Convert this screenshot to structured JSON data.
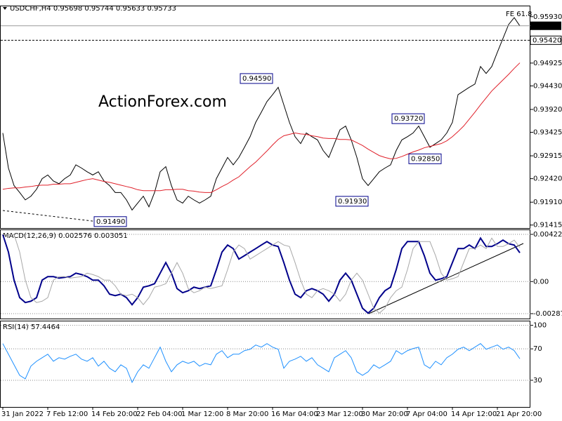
{
  "chart_data": [
    {
      "type": "line",
      "title": "USDCHF,H4 0.95698 0.95744 0.95633 0.95733",
      "watermark": "ActionForex.com",
      "fe_label": "FE 61.8",
      "ylim": [
        0.9135,
        0.9617
      ],
      "yticks": [
        {
          "value": 0.9593,
          "label": "0.95930"
        },
        {
          "value": 0.94925,
          "label": "0.94925"
        },
        {
          "value": 0.9443,
          "label": "0.94430"
        },
        {
          "value": 0.9392,
          "label": "0.93920"
        },
        {
          "value": 0.93425,
          "label": "0.93425"
        },
        {
          "value": 0.92915,
          "label": "0.92915"
        },
        {
          "value": 0.9242,
          "label": "0.92420"
        },
        {
          "value": 0.9191,
          "label": "0.91910"
        },
        {
          "value": 0.91415,
          "label": "0.91415"
        }
      ],
      "current_price": {
        "value": 0.95733,
        "label": "0.95733"
      },
      "level": {
        "value": 0.9542,
        "label": "0.95420"
      },
      "annotations": [
        {
          "value": 0.9459,
          "label": "0.94590",
          "index": 48
        },
        {
          "value": 0.9372,
          "label": "0.93720",
          "index": 75
        },
        {
          "value": 0.9285,
          "label": "0.92850",
          "index": 78
        },
        {
          "value": 0.9193,
          "label": "0.91930",
          "index": 65
        },
        {
          "value": 0.9149,
          "label": "0.91490",
          "index": 22
        }
      ],
      "series": [
        {
          "color": "#000000",
          "values": [
            0.9341,
            0.9265,
            0.9227,
            0.9212,
            0.9196,
            0.9204,
            0.9219,
            0.9242,
            0.925,
            0.9237,
            0.9231,
            0.9242,
            0.925,
            0.9272,
            0.9265,
            0.9257,
            0.925,
            0.9257,
            0.9237,
            0.9227,
            0.9212,
            0.9212,
            0.9196,
            0.9174,
            0.9189,
            0.9204,
            0.9181,
            0.9212,
            0.9257,
            0.9268,
            0.9227,
            0.9196,
            0.9189,
            0.9204,
            0.9196,
            0.9189,
            0.9196,
            0.9204,
            0.9242,
            0.9265,
            0.9288,
            0.9272,
            0.9288,
            0.931,
            0.9333,
            0.9364,
            0.9386,
            0.9409,
            0.9424,
            0.944,
            0.9402,
            0.9364,
            0.9333,
            0.9318,
            0.9341,
            0.9333,
            0.9326,
            0.9303,
            0.9288,
            0.9318,
            0.9348,
            0.9356,
            0.9326,
            0.9288,
            0.9242,
            0.9227,
            0.9242,
            0.9257,
            0.9265,
            0.9272,
            0.9303,
            0.9326,
            0.9333,
            0.9341,
            0.9356,
            0.9333,
            0.931,
            0.9318,
            0.9326,
            0.9341,
            0.9364,
            0.9424,
            0.9432,
            0.944,
            0.9447,
            0.9485,
            0.947,
            0.9485,
            0.9516,
            0.9546,
            0.9576,
            0.9591,
            0.9573
          ]
        },
        {
          "color": "#e0202a",
          "values": [
            0.9219,
            0.9221,
            0.9222,
            0.9222,
            0.9224,
            0.9225,
            0.9227,
            0.9228,
            0.9228,
            0.923,
            0.923,
            0.9231,
            0.9231,
            0.9234,
            0.9237,
            0.924,
            0.9242,
            0.9239,
            0.9236,
            0.9234,
            0.9231,
            0.9228,
            0.9225,
            0.9222,
            0.9218,
            0.9216,
            0.9216,
            0.9216,
            0.9216,
            0.9218,
            0.9218,
            0.9219,
            0.9219,
            0.9216,
            0.9215,
            0.9213,
            0.9212,
            0.9212,
            0.9218,
            0.9225,
            0.9231,
            0.9239,
            0.9246,
            0.9257,
            0.9268,
            0.9278,
            0.929,
            0.9302,
            0.9315,
            0.9327,
            0.9335,
            0.9338,
            0.9341,
            0.9339,
            0.9338,
            0.9335,
            0.9333,
            0.933,
            0.9329,
            0.9329,
            0.9327,
            0.9327,
            0.9326,
            0.932,
            0.9314,
            0.9306,
            0.9299,
            0.9292,
            0.9288,
            0.9285,
            0.9286,
            0.929,
            0.9295,
            0.93,
            0.9304,
            0.9309,
            0.9312,
            0.9315,
            0.9318,
            0.9324,
            0.9333,
            0.9344,
            0.9356,
            0.9371,
            0.9386,
            0.9402,
            0.9417,
            0.9432,
            0.9444,
            0.9456,
            0.9468,
            0.9481,
            0.9493
          ]
        }
      ]
    },
    {
      "type": "line",
      "title": "MACD(12,26,9) 0.002576 0.003051",
      "grid": true,
      "ylim": [
        -0.003376,
        0.004603
      ],
      "yticks": [
        0.004226,
        {
          "value": 0,
          "label": "0.00"
        },
        -0.002874
      ],
      "series": [
        {
          "color": "#00008b",
          "values": [
            0.00421,
            0.00264,
            0.00013,
            -0.00144,
            -0.00188,
            -0.00176,
            -0.00144,
            0.00013,
            0.00044,
            0.00044,
            0.00031,
            0.00038,
            0.00044,
            0.00075,
            0.00063,
            0.00044,
            0.00013,
            0.00013,
            -0.00038,
            -0.00113,
            -0.00126,
            -0.00113,
            -0.00144,
            -0.00207,
            -0.00144,
            -0.0005,
            -0.00038,
            -0.00019,
            0.00075,
            0.0017,
            0.00075,
            -0.00063,
            -0.001,
            -0.00082,
            -0.0005,
            -0.00063,
            -0.0005,
            -0.00038,
            0.00107,
            0.00264,
            0.00327,
            0.00295,
            0.00201,
            0.00232,
            0.00264,
            0.00295,
            0.00327,
            0.00358,
            0.00327,
            0.00314,
            0.0017,
            0.00013,
            -0.00113,
            -0.00144,
            -0.00082,
            -0.00063,
            -0.00082,
            -0.00113,
            -0.00176,
            -0.00113,
            0.00013,
            0.00075,
            0.00013,
            -0.00113,
            -0.00239,
            -0.00283,
            -0.00239,
            -0.00144,
            -0.00082,
            -0.0005,
            0.00107,
            0.00295,
            0.00358,
            0.00358,
            0.00358,
            0.00232,
            0.00075,
            0.00013,
            0.00025,
            0.00044,
            0.0017,
            0.00295,
            0.00295,
            0.00327,
            0.00295,
            0.00389,
            0.00314,
            0.00314,
            0.00339,
            0.00371,
            0.00339,
            0.00327,
            0.002576
          ]
        },
        {
          "color": "#a8a8a8",
          "values": [
            0.00421,
            0.00421,
            0.00421,
            0.00264,
            0.00013,
            -0.00144,
            -0.00188,
            -0.00176,
            -0.00144,
            0.00013,
            0.00044,
            0.00044,
            0.00031,
            0.00038,
            0.00044,
            0.00075,
            0.00063,
            0.00044,
            0.00013,
            0.00013,
            -0.00038,
            -0.00113,
            -0.00126,
            -0.00113,
            -0.00144,
            -0.00207,
            -0.00144,
            -0.0005,
            -0.00038,
            -0.00019,
            0.00075,
            0.0017,
            0.00075,
            -0.00063,
            -0.001,
            -0.00082,
            -0.0005,
            -0.00063,
            -0.0005,
            -0.00038,
            0.00107,
            0.00264,
            0.00327,
            0.00295,
            0.00201,
            0.00232,
            0.00264,
            0.00295,
            0.00327,
            0.00358,
            0.00327,
            0.00314,
            0.0017,
            0.00013,
            -0.00113,
            -0.00144,
            -0.00082,
            -0.00063,
            -0.00082,
            -0.00113,
            -0.00176,
            -0.00113,
            0.00013,
            0.00075,
            0.00013,
            -0.00113,
            -0.00239,
            -0.00283,
            -0.00239,
            -0.00144,
            -0.00082,
            -0.0005,
            0.00107,
            0.00295,
            0.00358,
            0.00358,
            0.00358,
            0.00232,
            0.00075,
            0.00013,
            0.00025,
            0.00044,
            0.0017,
            0.00295,
            0.00295,
            0.00327,
            0.00295,
            0.00389,
            0.00314,
            0.00314,
            0.00339,
            0.00371,
            0.003051
          ]
        }
      ]
    },
    {
      "type": "line",
      "title": "RSI(14) 57.4464",
      "grid": true,
      "ylim": [
        -4,
        105
      ],
      "yticks": [
        100,
        70,
        30
      ],
      "categories": [
        "31 Jan 2022",
        null,
        null,
        null,
        null,
        null,
        null,
        null,
        "7 Feb 12:00",
        null,
        null,
        null,
        null,
        null,
        null,
        null,
        "14 Feb 20:00",
        null,
        null,
        null,
        null,
        null,
        null,
        null,
        "22 Feb 04:00",
        null,
        null,
        null,
        null,
        null,
        null,
        null,
        "1 Mar 12:00",
        null,
        null,
        null,
        null,
        null,
        null,
        null,
        "8 Mar 20:00",
        null,
        null,
        null,
        null,
        null,
        null,
        null,
        "16 Mar 04:00",
        null,
        null,
        null,
        null,
        null,
        null,
        null,
        "23 Mar 12:00",
        null,
        null,
        null,
        null,
        null,
        null,
        null,
        "30 Mar 20:00",
        null,
        null,
        null,
        null,
        null,
        null,
        null,
        "7 Apr 04:00",
        null,
        null,
        null,
        null,
        null,
        null,
        null,
        "14 Apr 12:00",
        null,
        null,
        null,
        null,
        null,
        null,
        null,
        "21 Apr 20:00",
        null,
        null,
        null,
        null
      ],
      "series": [
        {
          "color": "#1e90ff",
          "values": [
            76.7,
            63.2,
            49.7,
            36.3,
            31.8,
            48.0,
            54.2,
            58.7,
            63.2,
            54.2,
            58.7,
            56.9,
            60.5,
            63.2,
            56.9,
            54.2,
            58.7,
            48.0,
            54.2,
            45.3,
            40.8,
            49.7,
            45.3,
            27.3,
            40.8,
            49.7,
            45.3,
            58.7,
            72.2,
            54.2,
            40.8,
            49.7,
            54.2,
            51.5,
            54.2,
            48.0,
            51.5,
            49.7,
            63.2,
            67.7,
            58.7,
            63.2,
            63.2,
            67.7,
            69.5,
            74.9,
            72.2,
            76.7,
            72.2,
            69.5,
            45.3,
            54.2,
            56.9,
            60.5,
            54.2,
            58.7,
            49.7,
            45.3,
            40.8,
            58.7,
            63.2,
            67.7,
            58.7,
            40.8,
            36.3,
            40.8,
            49.7,
            45.3,
            49.7,
            54.2,
            67.7,
            63.2,
            67.7,
            70.4,
            72.2,
            49.7,
            45.3,
            54.2,
            49.7,
            58.7,
            63.2,
            69.5,
            72.2,
            67.7,
            72.2,
            76.7,
            69.5,
            72.2,
            74.9,
            69.5,
            72.2,
            67.7,
            57.4
          ]
        }
      ]
    }
  ]
}
